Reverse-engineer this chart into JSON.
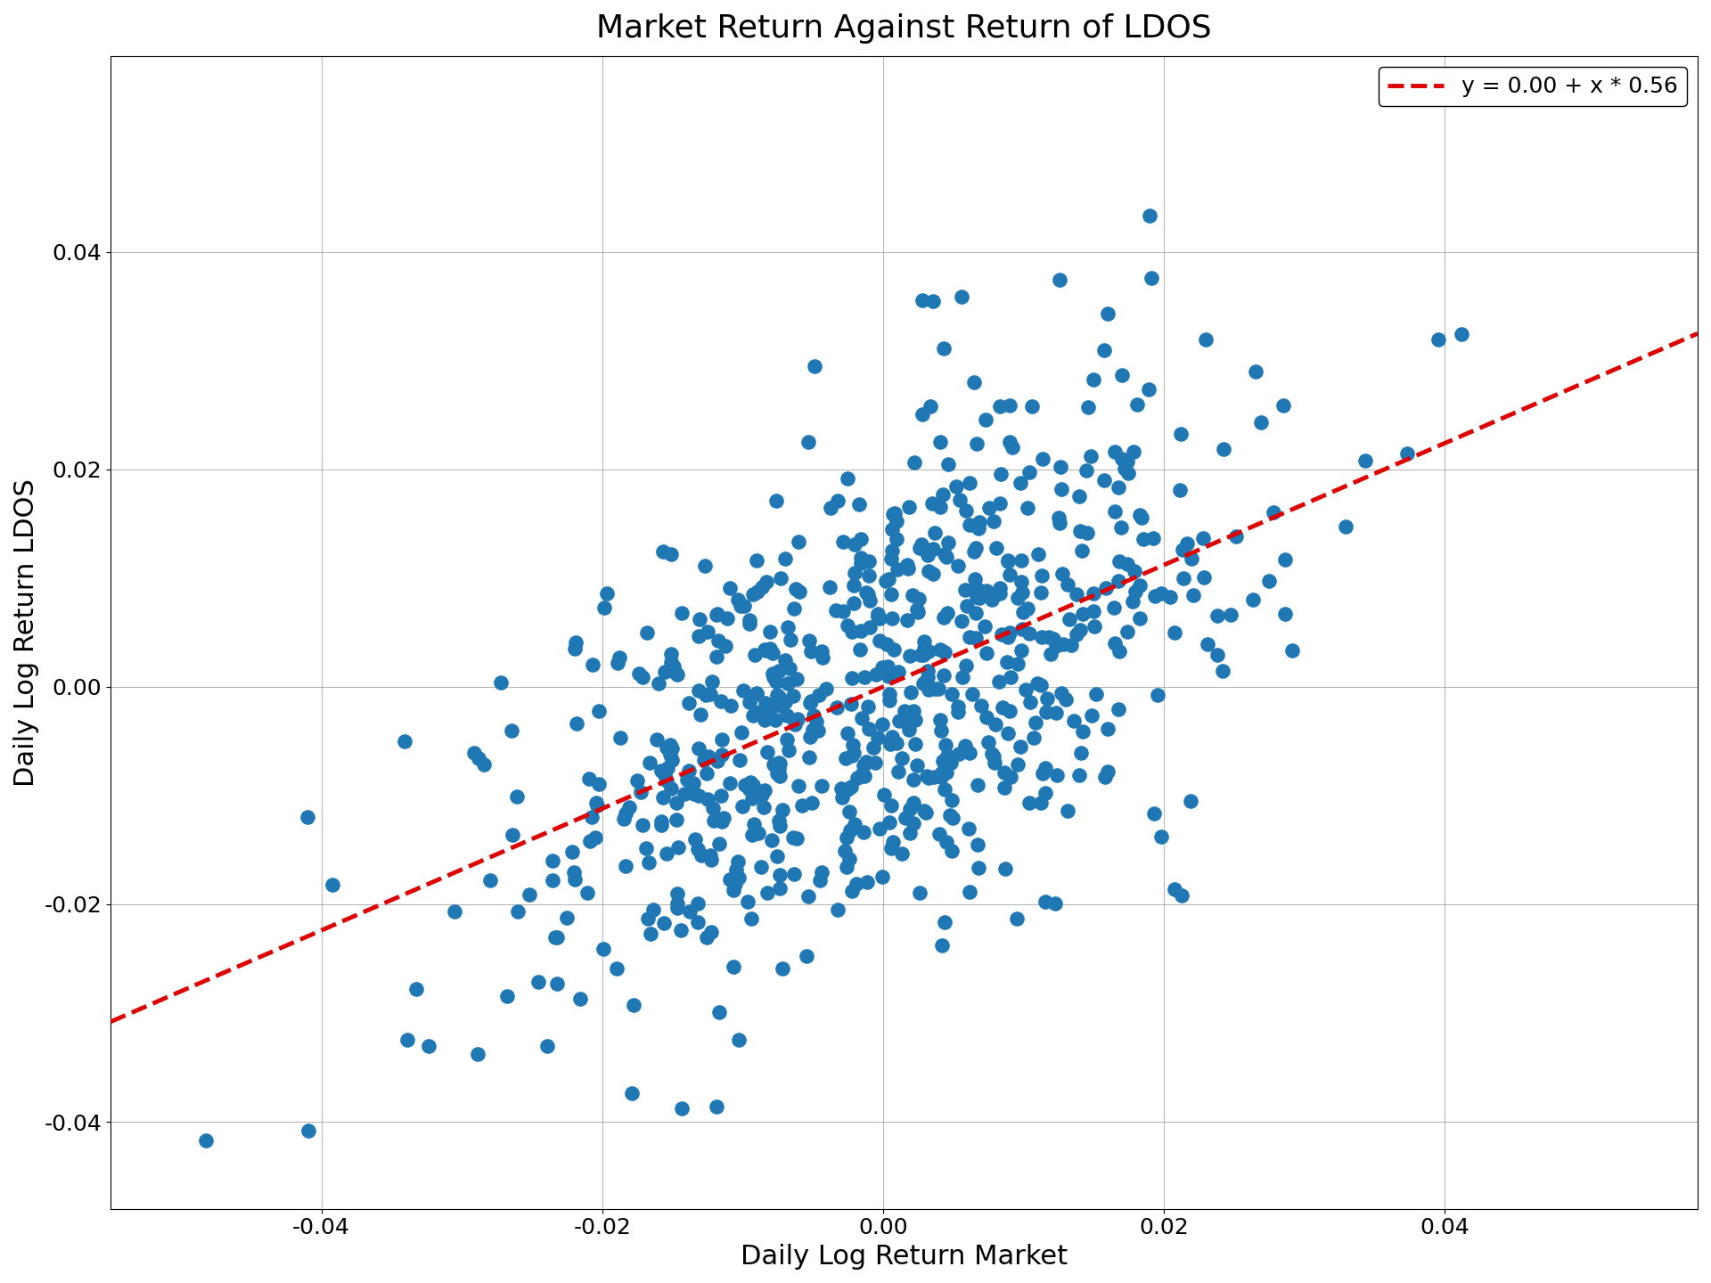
{
  "title": "Market Return Against Return of LDOS",
  "xlabel": "Daily Log Return Market",
  "ylabel": "Daily Log Return LDOS",
  "intercept": 0.0,
  "slope": 0.56,
  "legend_label": "y = 0.00 + x * 0.56",
  "dot_color": "#1f77b4",
  "line_color": "#dd0000",
  "xlim": [
    -0.055,
    0.058
  ],
  "ylim": [
    -0.048,
    0.058
  ],
  "xticks": [
    -0.04,
    -0.02,
    0.0,
    0.02,
    0.04
  ],
  "yticks": [
    -0.04,
    -0.02,
    0.0,
    0.02,
    0.04
  ],
  "n_points": 700,
  "seed": 12,
  "market_std": 0.013,
  "idio_std": 0.011,
  "figsize": [
    19.2,
    14.4
  ],
  "dpi": 100,
  "title_fontsize": 26,
  "label_fontsize": 22,
  "tick_fontsize": 18,
  "legend_fontsize": 18,
  "marker_size": 120,
  "linewidth": 3.5
}
